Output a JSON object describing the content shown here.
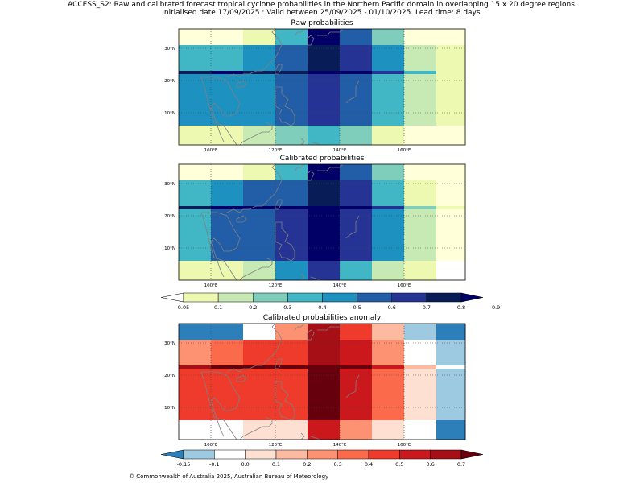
{
  "title_line1": "ACCESS_S2: Raw and calibrated forecast tropical cyclone probabilities in the Northern Pacific domain in overlapping 15 x 20 degree regions",
  "title_line2": "initialised date 17/09/2025 :  Valid between 25/09/2025 - 01/10/2025. Lead time: 8 days",
  "copyright": "© Commonwealth of Australia 2025, Australian Bureau of Meteorology",
  "colors": {
    "prob": [
      "#ffffd9",
      "#edf8b1",
      "#c7e9b4",
      "#7fcdbb",
      "#41b6c4",
      "#1d91c0",
      "#225ea8",
      "#253494",
      "#081d58",
      "#000066"
    ],
    "prob_under": "#ffffff",
    "anom": [
      "#2c7fb8",
      "#9ecae1",
      "#ffffff",
      "#fee0d2",
      "#fcbba1",
      "#fc9272",
      "#fb6a4a",
      "#ef3b2c",
      "#cb181d",
      "#a50f15",
      "#67000d"
    ],
    "coast": "#808080",
    "grid": "#444444"
  },
  "chart_data": [
    {
      "type": "heatmap",
      "title": "Raw probabilities",
      "x_ticks": [
        "100°E",
        "120°E",
        "140°E",
        "160°E"
      ],
      "y_ticks": [
        "30°N",
        "20°N",
        "10°N"
      ],
      "xlim": [
        90,
        179
      ],
      "ylim": [
        0,
        36
      ],
      "col_edges": [
        90,
        100,
        110,
        120,
        130,
        140,
        150,
        160,
        170,
        179
      ],
      "row_edges": [
        36,
        31,
        29,
        23,
        22,
        14,
        6,
        0
      ],
      "cells": [
        [
          0,
          0,
          1,
          4,
          9,
          6,
          3,
          0,
          0
        ],
        [
          4,
          4,
          5,
          6,
          8,
          7,
          5,
          2,
          1
        ],
        [
          4,
          4,
          5,
          6,
          8,
          7,
          5,
          2,
          1
        ],
        [
          8,
          9,
          8,
          8,
          9,
          9,
          7,
          4,
          1
        ],
        [
          5,
          5,
          5,
          6,
          7,
          6,
          4,
          2,
          1
        ],
        [
          5,
          5,
          5,
          6,
          7,
          6,
          4,
          2,
          1
        ],
        [
          1,
          1,
          2,
          3,
          4,
          3,
          1,
          0,
          0
        ]
      ]
    },
    {
      "type": "heatmap",
      "title": "Calibrated probabilities",
      "x_ticks": [
        "100°E",
        "120°E",
        "140°E",
        "160°E"
      ],
      "y_ticks": [
        "30°N",
        "20°N",
        "10°N"
      ],
      "xlim": [
        90,
        179
      ],
      "ylim": [
        0,
        36
      ],
      "col_edges": [
        90,
        100,
        110,
        120,
        130,
        140,
        150,
        160,
        170,
        179
      ],
      "row_edges": [
        36,
        31,
        29,
        23,
        22,
        14,
        6,
        0
      ],
      "cells": [
        [
          0,
          0,
          1,
          4,
          9,
          6,
          3,
          0,
          0
        ],
        [
          4,
          5,
          6,
          6,
          8,
          7,
          4,
          1,
          0
        ],
        [
          4,
          5,
          6,
          6,
          8,
          7,
          4,
          1,
          0
        ],
        [
          8,
          9,
          9,
          9,
          9,
          9,
          7,
          3,
          1
        ],
        [
          4,
          6,
          6,
          7,
          9,
          7,
          5,
          2,
          0
        ],
        [
          4,
          6,
          6,
          7,
          9,
          7,
          5,
          2,
          0
        ],
        [
          1,
          1,
          2,
          5,
          7,
          4,
          2,
          1,
          -1
        ]
      ]
    },
    {
      "type": "heatmap",
      "title": "Calibrated probabilities anomaly",
      "x_ticks": [
        "100°E",
        "120°E",
        "140°E",
        "160°E"
      ],
      "y_ticks": [
        "30°N",
        "20°N",
        "10°N"
      ],
      "xlim": [
        90,
        179
      ],
      "ylim": [
        0,
        36
      ],
      "col_edges": [
        90,
        100,
        110,
        120,
        130,
        140,
        150,
        160,
        170,
        179
      ],
      "row_edges": [
        36,
        31,
        29,
        23,
        22,
        14,
        6,
        0
      ],
      "cells": [
        [
          0,
          0,
          2,
          5,
          9,
          7,
          4,
          1,
          0
        ],
        [
          5,
          6,
          7,
          7,
          9,
          8,
          5,
          2,
          1
        ],
        [
          5,
          6,
          7,
          7,
          9,
          8,
          5,
          2,
          1
        ],
        [
          9,
          10,
          10,
          10,
          10,
          10,
          8,
          4,
          2
        ],
        [
          7,
          7,
          7,
          7,
          10,
          8,
          6,
          3,
          1
        ],
        [
          7,
          7,
          7,
          7,
          10,
          8,
          6,
          3,
          1
        ],
        [
          2,
          2,
          3,
          3,
          8,
          5,
          3,
          2,
          0
        ]
      ]
    }
  ],
  "colorbar_prob": {
    "labels": [
      "0.05",
      "0.1",
      "0.2",
      "0.3",
      "0.4",
      "0.5",
      "0.6",
      "0.7",
      "0.8",
      "0.9"
    ]
  },
  "colorbar_anom": {
    "labels": [
      "-0.15",
      "-0.1",
      "0.0",
      "0.1",
      "0.2",
      "0.3",
      "0.4",
      "0.5",
      "0.6",
      "0.7"
    ]
  }
}
